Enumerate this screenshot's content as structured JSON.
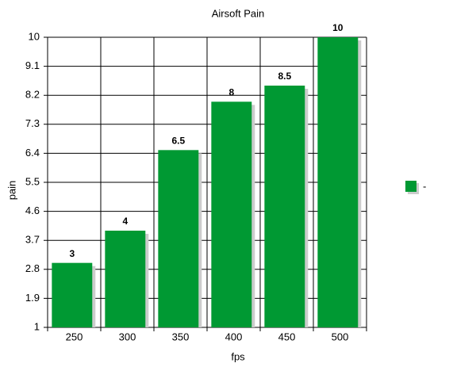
{
  "chart_data": {
    "type": "bar",
    "title": "Airsoft Pain",
    "x_label": "fps",
    "y_label": "pain",
    "categories": [
      "250",
      "300",
      "350",
      "400",
      "450",
      "500"
    ],
    "series": [
      {
        "name": "-",
        "color": "#009933",
        "values": [
          3,
          4,
          6.5,
          8,
          8.5,
          10
        ]
      }
    ],
    "ylim": [
      1,
      10
    ],
    "yticks": [
      1,
      1.9,
      2.8,
      3.7,
      4.6,
      5.5,
      6.4,
      7.3,
      8.2,
      9.1,
      10
    ],
    "grid": true,
    "legend": "right"
  }
}
